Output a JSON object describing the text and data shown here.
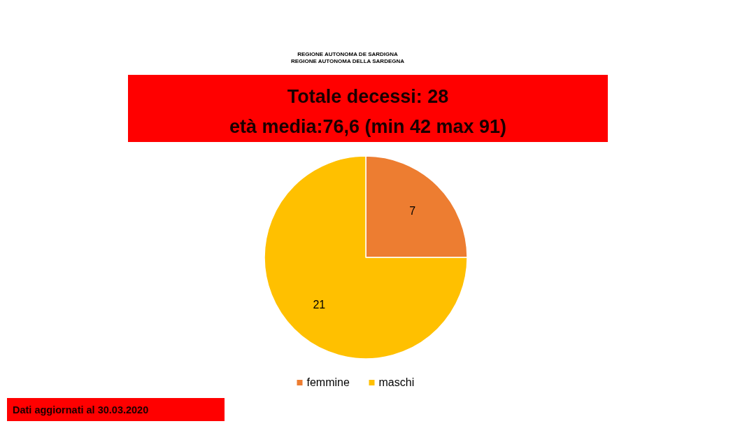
{
  "chart_data": {
    "type": "pie",
    "title": "Totale decessi: 28",
    "subtitle": "età media:76,6 (min 42 max 91)",
    "categories": [
      "femmine",
      "maschi"
    ],
    "values": [
      7,
      21
    ],
    "colors": [
      "#ed7d31",
      "#ffc000"
    ],
    "data_labels": true,
    "legend": "bottom",
    "annotations": [
      "Dati aggiornati al 30.03.2020",
      "REGIONE AUTONOMA DE SARDIGNA",
      "REGIONE AUTONOMA DELLA SARDEGNA"
    ]
  }
}
